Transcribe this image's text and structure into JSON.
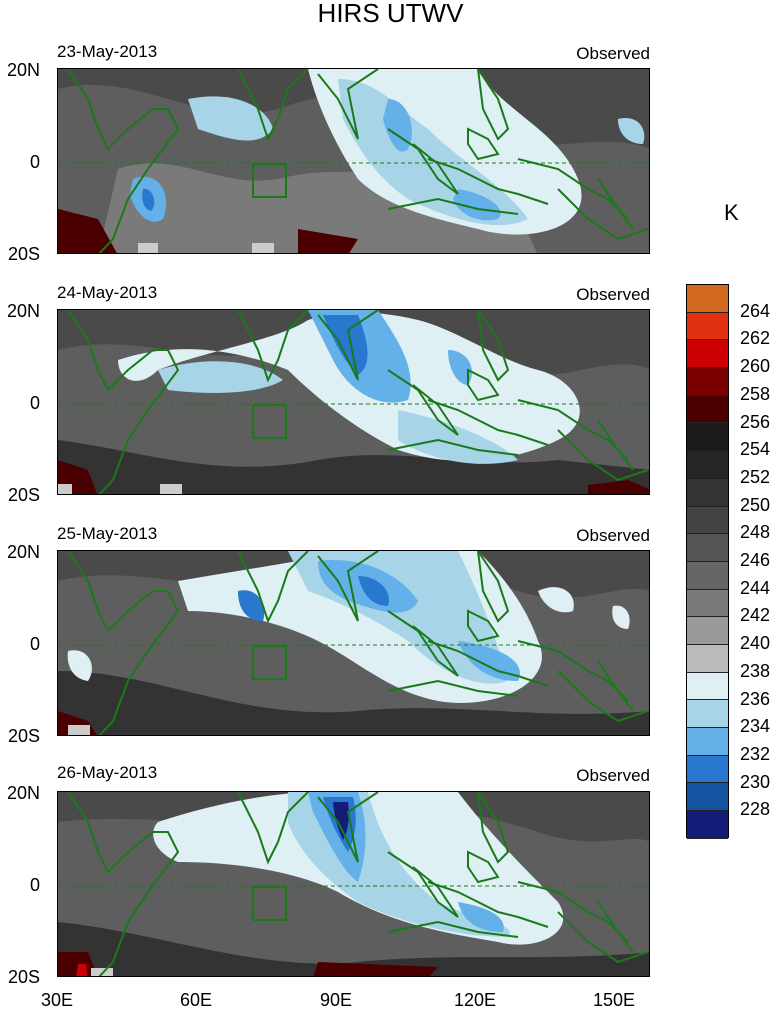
{
  "title": "HIRS UTWV",
  "unit": "K",
  "panels": [
    {
      "date": "23-May-2013",
      "label": "Observed"
    },
    {
      "date": "24-May-2013",
      "label": "Observed"
    },
    {
      "date": "25-May-2013",
      "label": "Observed"
    },
    {
      "date": "26-May-2013",
      "label": "Observed"
    }
  ],
  "lat_labels": [
    "20N",
    "0",
    "20S"
  ],
  "lon_labels": [
    "30E",
    "60E",
    "90E",
    "120E",
    "150E"
  ],
  "colorbar": {
    "labels": [
      "264",
      "262",
      "260",
      "258",
      "256",
      "254",
      "252",
      "250",
      "248",
      "246",
      "244",
      "242",
      "240",
      "238",
      "236",
      "234",
      "232",
      "230",
      "228"
    ],
    "colors": [
      "#d2691e",
      "#e03010",
      "#cc0000",
      "#7a0000",
      "#4a0000",
      "#1a1a1a",
      "#262626",
      "#333333",
      "#444444",
      "#555555",
      "#666666",
      "#7a7a7a",
      "#999999",
      "#bbbbbb",
      "#dff0f5",
      "#a8d4e8",
      "#64b0e8",
      "#2878d0",
      "#1454a0",
      "#141c78"
    ]
  },
  "colors": {
    "coast": "#1a7a1a",
    "background": "#3a3a3a"
  }
}
